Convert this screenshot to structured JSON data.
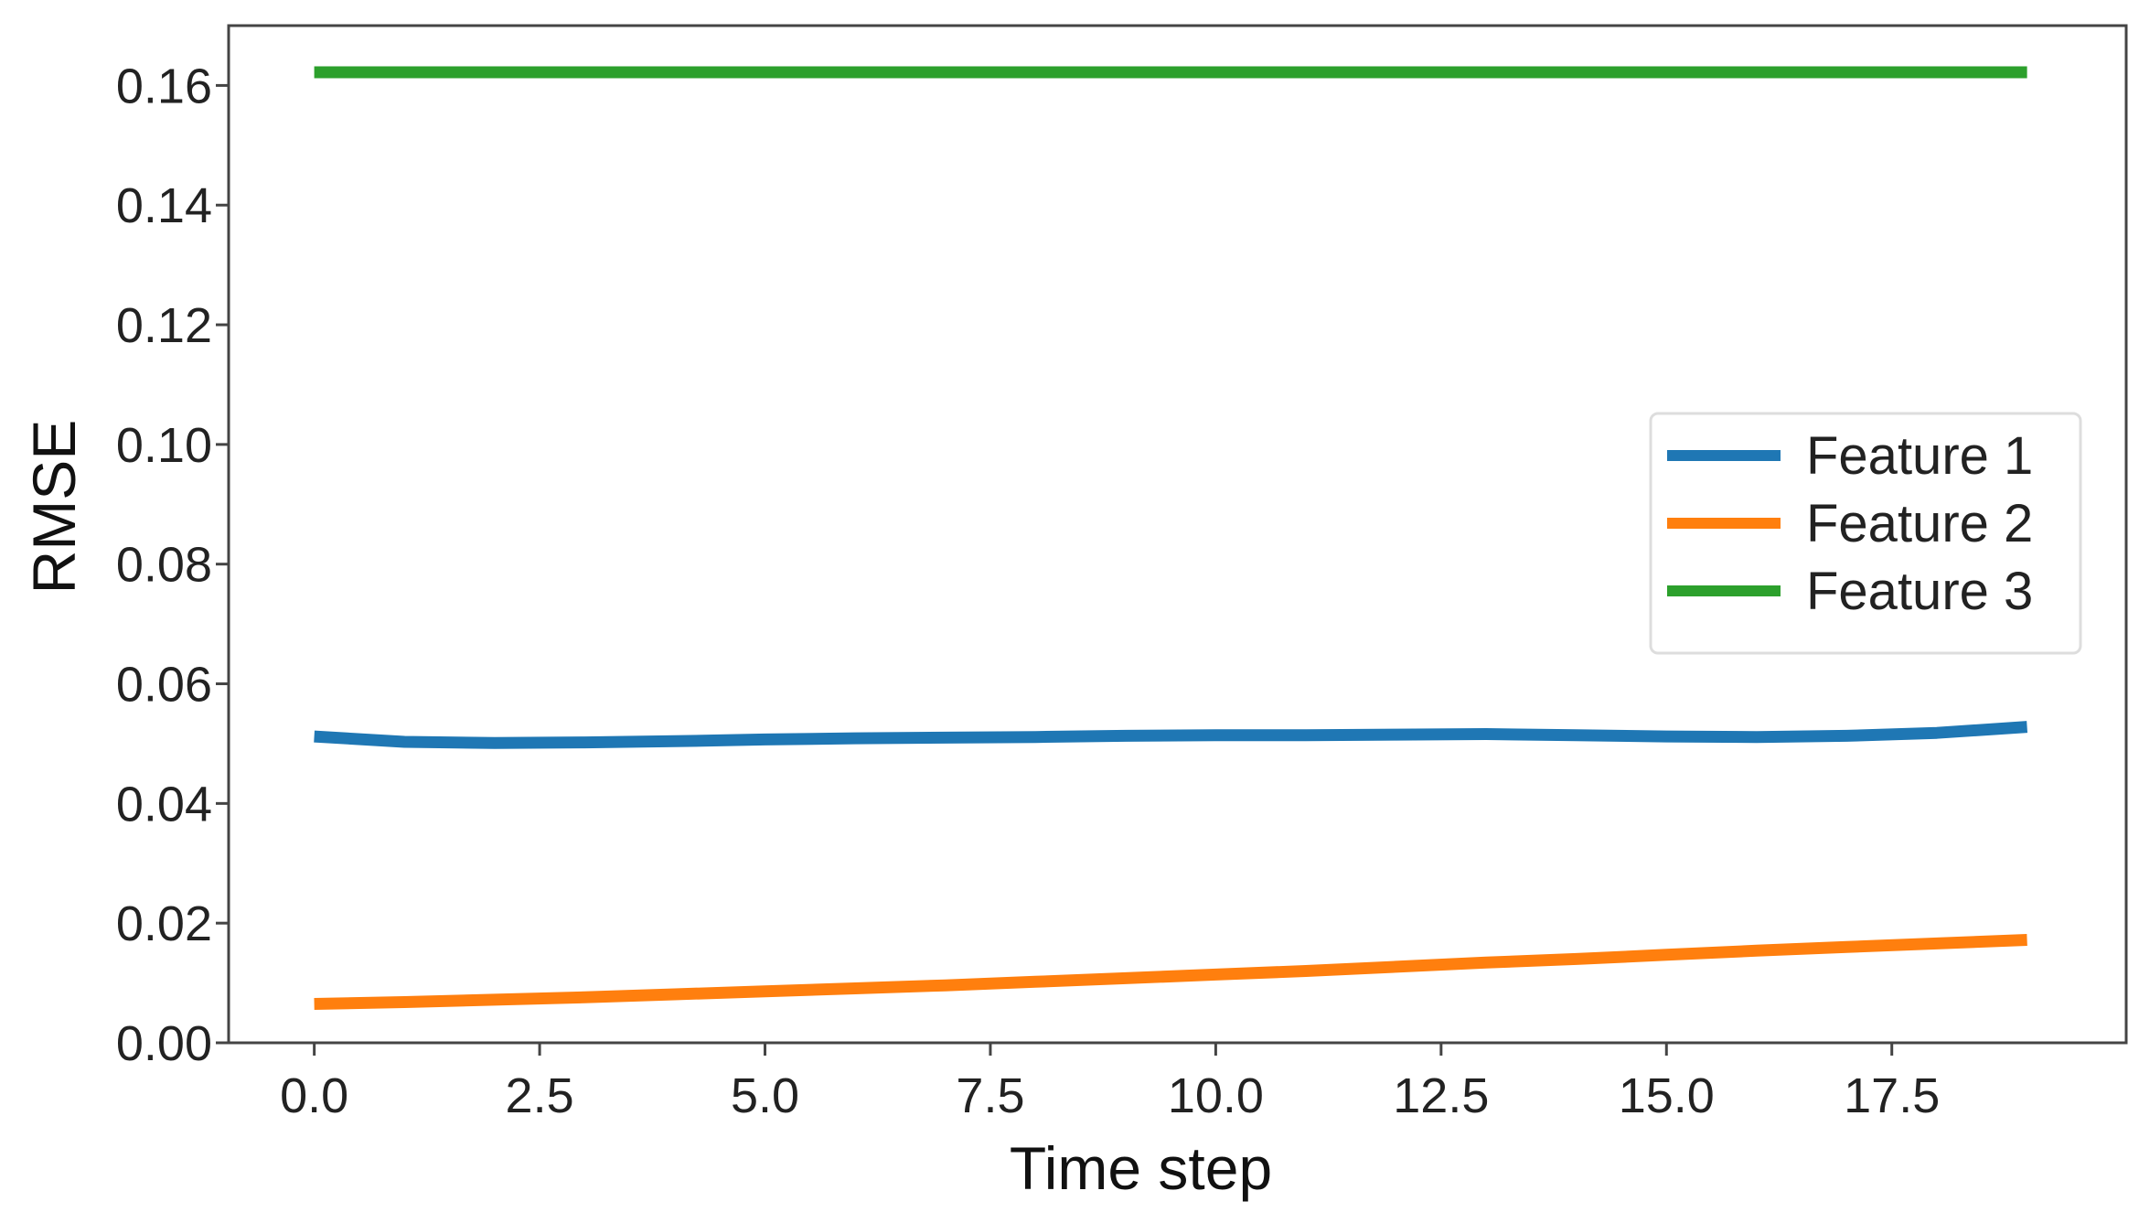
{
  "chart_data": {
    "type": "line",
    "xlabel": "Time step",
    "ylabel": "RMSE",
    "xlim": [
      -0.95,
      20.1
    ],
    "ylim": [
      0.0,
      0.17
    ],
    "xticks": [
      0.0,
      2.5,
      5.0,
      7.5,
      10.0,
      12.5,
      15.0,
      17.5
    ],
    "xtick_labels": [
      "0.0",
      "2.5",
      "5.0",
      "7.5",
      "10.0",
      "12.5",
      "15.0",
      "17.5"
    ],
    "yticks": [
      0.0,
      0.02,
      0.04,
      0.06,
      0.08,
      0.1,
      0.12,
      0.14,
      0.16
    ],
    "ytick_labels": [
      "0.00",
      "0.02",
      "0.04",
      "0.06",
      "0.08",
      "0.10",
      "0.12",
      "0.14",
      "0.16"
    ],
    "grid": false,
    "legend_position": "center-right",
    "x": [
      0,
      1,
      2,
      3,
      4,
      5,
      6,
      7,
      8,
      9,
      10,
      11,
      12,
      13,
      14,
      15,
      16,
      17,
      18,
      19
    ],
    "series": [
      {
        "name": "Feature 1",
        "color": "#1f77b4",
        "values": [
          0.0512,
          0.0503,
          0.0501,
          0.0502,
          0.0504,
          0.0507,
          0.0509,
          0.051,
          0.0511,
          0.0513,
          0.0514,
          0.0514,
          0.0515,
          0.0516,
          0.0514,
          0.0512,
          0.0511,
          0.0513,
          0.0518,
          0.0528
        ]
      },
      {
        "name": "Feature 2",
        "color": "#ff7f0e",
        "values": [
          0.0065,
          0.0068,
          0.0072,
          0.0076,
          0.0081,
          0.0086,
          0.0091,
          0.0096,
          0.0102,
          0.0108,
          0.0114,
          0.012,
          0.0127,
          0.0134,
          0.014,
          0.0147,
          0.0154,
          0.016,
          0.0166,
          0.0172
        ]
      },
      {
        "name": "Feature 3",
        "color": "#2ca02c",
        "values": [
          0.1622,
          0.1622,
          0.1622,
          0.1622,
          0.1622,
          0.1622,
          0.1622,
          0.1622,
          0.1622,
          0.1622,
          0.1622,
          0.1622,
          0.1622,
          0.1622,
          0.1622,
          0.1622,
          0.1622,
          0.1622,
          0.1622,
          0.1622
        ]
      }
    ]
  }
}
